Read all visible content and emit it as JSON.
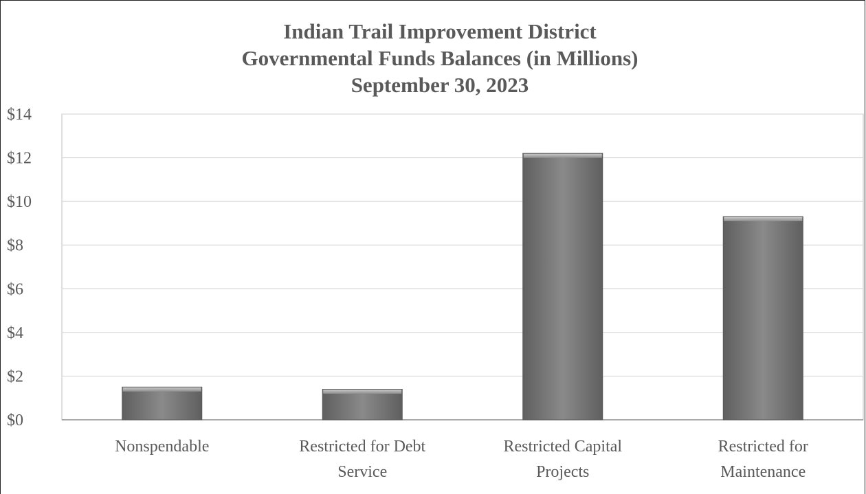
{
  "chart_data": {
    "type": "bar",
    "title": [
      "Indian Trail Improvement District",
      "Governmental Funds Balances (in Millions)",
      "September 30, 2023"
    ],
    "categories": [
      [
        "Nonspendable"
      ],
      [
        "Restricted for Debt",
        "Service"
      ],
      [
        "Restricted Capital",
        "Projects"
      ],
      [
        "Restricted for",
        "Maintenance"
      ]
    ],
    "values": [
      1.5,
      1.4,
      12.2,
      9.3
    ],
    "ylim": [
      0,
      14
    ],
    "yticks": [
      0,
      2,
      4,
      6,
      8,
      10,
      12,
      14
    ],
    "ytick_labels": [
      "$0",
      "$2",
      "$4",
      "$6",
      "$8",
      "$10",
      "$12",
      "$14"
    ],
    "grid": true,
    "legend": "none",
    "colors": {
      "bar": "#7f7f7f",
      "bar_top": "#a6a6a6",
      "bar_edge": "#595959",
      "grid": "#d9d9d9",
      "text": "#595959"
    }
  }
}
